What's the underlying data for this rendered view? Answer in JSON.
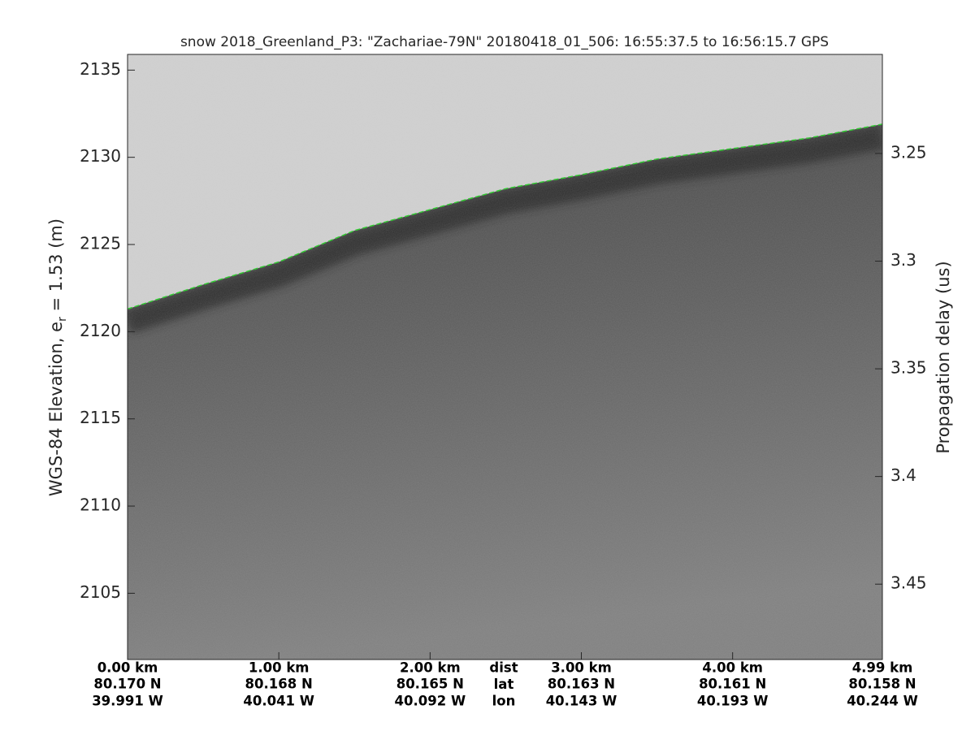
{
  "chart_data": {
    "type": "line",
    "title": "snow 2018_Greenland_P3: \"Zachariae-79N\"  20180418_01_506: 16:55:37.5 to 16:56:15.7 GPS",
    "ylabel": [
      "WGS-84 Elevation, e",
      "r",
      " = 1.53 (m)"
    ],
    "y2label": "Propagation delay (us)",
    "ylim": [
      2101.2,
      2135.9
    ],
    "yticks": [
      2105,
      2110,
      2115,
      2120,
      2125,
      2130,
      2135
    ],
    "y2lim": [
      3.485,
      3.204
    ],
    "y2ticks": [
      3.25,
      {
        "value": 3.3,
        "label": "3.3"
      },
      3.35,
      {
        "value": 3.4,
        "label": "3.4"
      },
      3.45
    ],
    "xlim": [
      0,
      4.99
    ],
    "xticks": [
      {
        "value": 0,
        "label": "0.00 km"
      },
      {
        "value": 1,
        "label": "1.00 km"
      },
      {
        "value": 2,
        "label": "2.00 km"
      },
      {
        "value": 3,
        "label": "3.00 km"
      },
      {
        "value": 4,
        "label": "4.00 km"
      },
      {
        "value": 4.99,
        "label": "4.99 km"
      }
    ],
    "lat_labels": [
      "80.170 N",
      "80.168 N",
      "80.165 N",
      "80.163 N",
      "80.161 N",
      "80.158 N"
    ],
    "lon_labels": [
      "39.991 W",
      "40.041 W",
      "40.092 W",
      "40.143 W",
      "40.193 W",
      "40.244 W"
    ],
    "row_labels": [
      "dist",
      "lat",
      "lon"
    ],
    "series": [
      {
        "color": "#22cc22",
        "x": [
          0,
          0.5,
          1,
          1.5,
          2,
          2.5,
          3,
          3.5,
          4,
          4.5,
          4.99
        ],
        "values": [
          2121.3,
          2122.7,
          2124.0,
          2125.8,
          2127.0,
          2128.2,
          2129.0,
          2129.9,
          2130.5,
          2131.1,
          2131.9
        ]
      }
    ]
  }
}
